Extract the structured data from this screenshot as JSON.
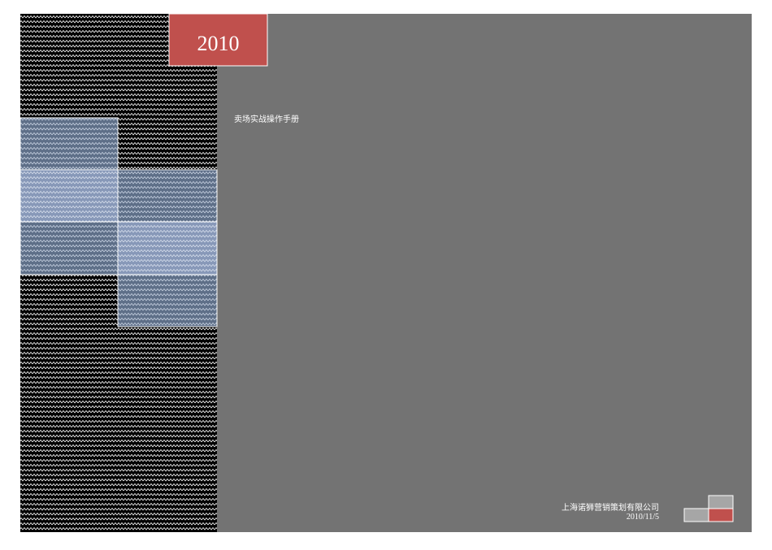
{
  "cover": {
    "year": "2010",
    "title": "卖场实战操作手册",
    "company": "上海诺狮营销策划有限公司",
    "date": "2010/11/5"
  }
}
